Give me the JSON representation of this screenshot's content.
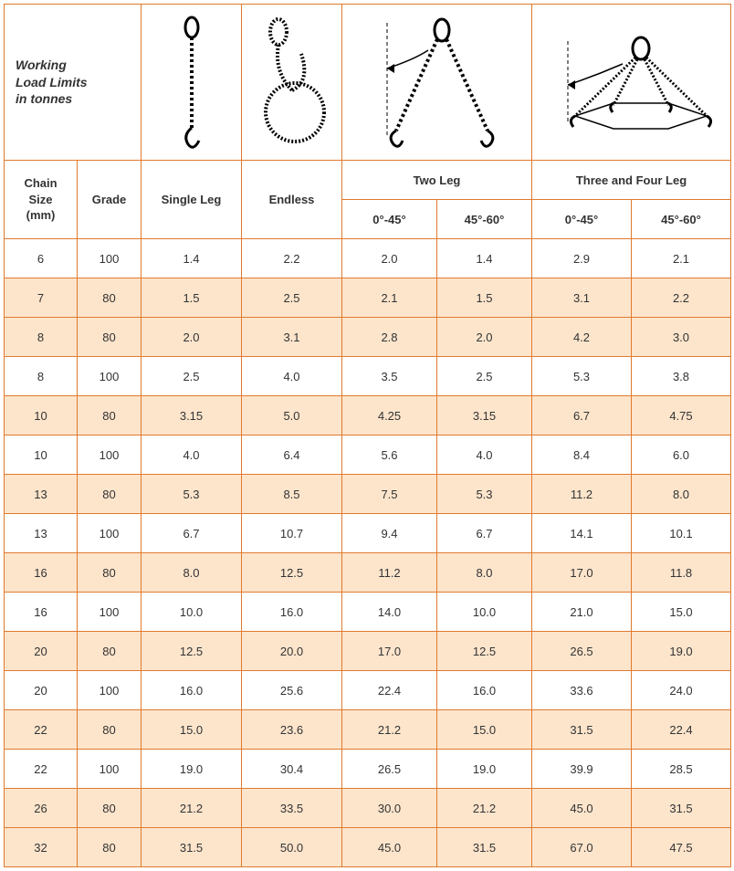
{
  "title_lines": [
    "Working",
    "Load Limits",
    "in tonnes"
  ],
  "columns": {
    "chain_size": "Chain Size (mm)",
    "grade": "Grade",
    "single_leg": "Single Leg",
    "endless": "Endless",
    "two_leg": "Two Leg",
    "three_four_leg": "Three and Four Leg",
    "angle_a": "0°-45°",
    "angle_b": "45°-60°"
  },
  "colors": {
    "border": "#e07a2e",
    "alt_row_bg": "#fde5cc",
    "text": "#333333",
    "background": "#ffffff"
  },
  "rows": [
    {
      "size": "6",
      "grade": "100",
      "single": "1.4",
      "endless": "2.2",
      "two_a": "2.0",
      "two_b": "1.4",
      "four_a": "2.9",
      "four_b": "2.1",
      "alt": false
    },
    {
      "size": "7",
      "grade": "80",
      "single": "1.5",
      "endless": "2.5",
      "two_a": "2.1",
      "two_b": "1.5",
      "four_a": "3.1",
      "four_b": "2.2",
      "alt": true
    },
    {
      "size": "8",
      "grade": "80",
      "single": "2.0",
      "endless": "3.1",
      "two_a": "2.8",
      "two_b": "2.0",
      "four_a": "4.2",
      "four_b": "3.0",
      "alt": true
    },
    {
      "size": "8",
      "grade": "100",
      "single": "2.5",
      "endless": "4.0",
      "two_a": "3.5",
      "two_b": "2.5",
      "four_a": "5.3",
      "four_b": "3.8",
      "alt": false
    },
    {
      "size": "10",
      "grade": "80",
      "single": "3.15",
      "endless": "5.0",
      "two_a": "4.25",
      "two_b": "3.15",
      "four_a": "6.7",
      "four_b": "4.75",
      "alt": true
    },
    {
      "size": "10",
      "grade": "100",
      "single": "4.0",
      "endless": "6.4",
      "two_a": "5.6",
      "two_b": "4.0",
      "four_a": "8.4",
      "four_b": "6.0",
      "alt": false
    },
    {
      "size": "13",
      "grade": "80",
      "single": "5.3",
      "endless": "8.5",
      "two_a": "7.5",
      "two_b": "5.3",
      "four_a": "11.2",
      "four_b": "8.0",
      "alt": true
    },
    {
      "size": "13",
      "grade": "100",
      "single": "6.7",
      "endless": "10.7",
      "two_a": "9.4",
      "two_b": "6.7",
      "four_a": "14.1",
      "four_b": "10.1",
      "alt": false
    },
    {
      "size": "16",
      "grade": "80",
      "single": "8.0",
      "endless": "12.5",
      "two_a": "11.2",
      "two_b": "8.0",
      "four_a": "17.0",
      "four_b": "11.8",
      "alt": true
    },
    {
      "size": "16",
      "grade": "100",
      "single": "10.0",
      "endless": "16.0",
      "two_a": "14.0",
      "two_b": "10.0",
      "four_a": "21.0",
      "four_b": "15.0",
      "alt": false
    },
    {
      "size": "20",
      "grade": "80",
      "single": "12.5",
      "endless": "20.0",
      "two_a": "17.0",
      "two_b": "12.5",
      "four_a": "26.5",
      "four_b": "19.0",
      "alt": true
    },
    {
      "size": "20",
      "grade": "100",
      "single": "16.0",
      "endless": "25.6",
      "two_a": "22.4",
      "two_b": "16.0",
      "four_a": "33.6",
      "four_b": "24.0",
      "alt": false
    },
    {
      "size": "22",
      "grade": "80",
      "single": "15.0",
      "endless": "23.6",
      "two_a": "21.2",
      "two_b": "15.0",
      "four_a": "31.5",
      "four_b": "22.4",
      "alt": true
    },
    {
      "size": "22",
      "grade": "100",
      "single": "19.0",
      "endless": "30.4",
      "two_a": "26.5",
      "two_b": "19.0",
      "four_a": "39.9",
      "four_b": "28.5",
      "alt": false
    },
    {
      "size": "26",
      "grade": "80",
      "single": "21.2",
      "endless": "33.5",
      "two_a": "30.0",
      "two_b": "21.2",
      "four_a": "45.0",
      "four_b": "31.5",
      "alt": true
    },
    {
      "size": "32",
      "grade": "80",
      "single": "31.5",
      "endless": "50.0",
      "two_a": "45.0",
      "two_b": "31.5",
      "four_a": "67.0",
      "four_b": "47.5",
      "alt": true
    }
  ]
}
